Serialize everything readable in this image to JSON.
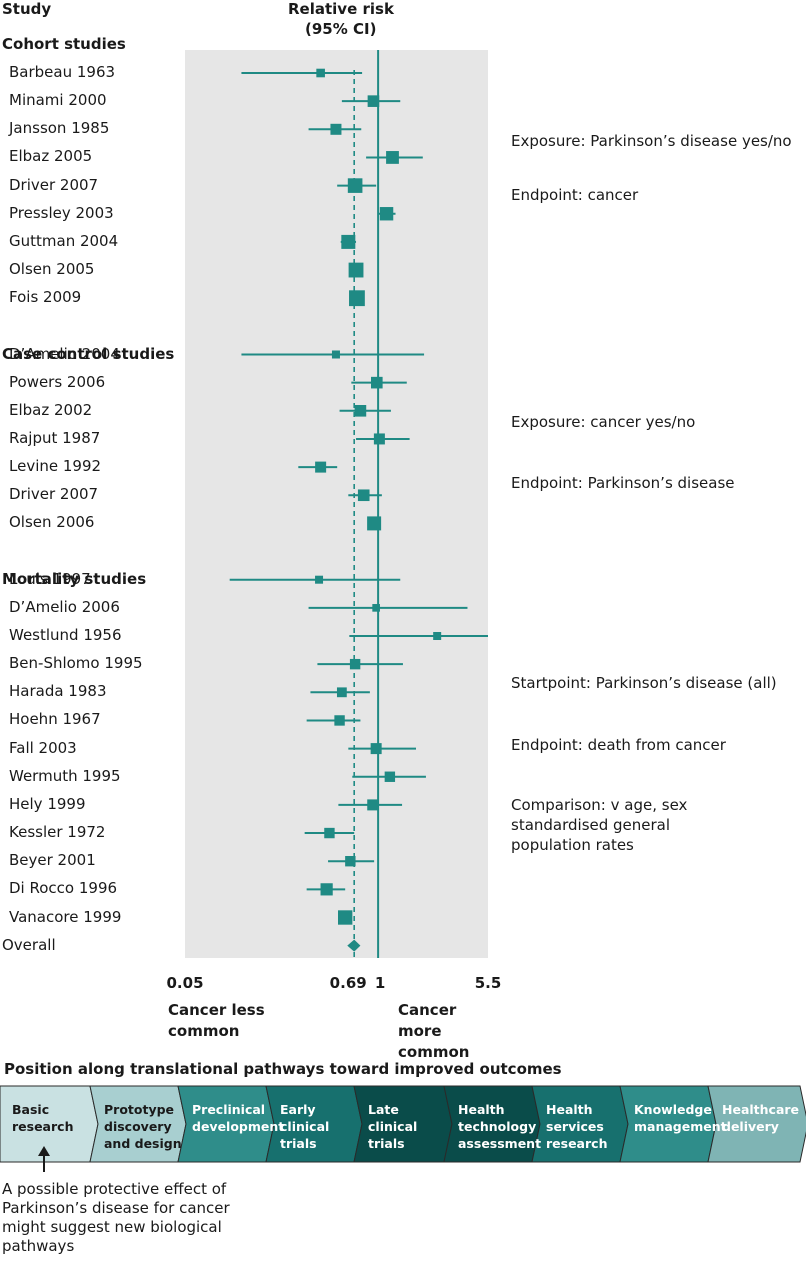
{
  "header": {
    "study_label": "Study",
    "effect_label_1": "Relative risk",
    "effect_label_2": "(95% CI)"
  },
  "chart_data": {
    "type": "forest",
    "xscale": "log",
    "xlim": [
      0.05,
      5.5
    ],
    "xticks": [
      "0.05",
      "0.69",
      "1",
      "5.5"
    ],
    "reference_line": 1,
    "pooled_line": 0.69,
    "xlabel_left": "Cancer less common",
    "xlabel_right": "Cancer more common",
    "marker_color": "#1f8a84",
    "background_color": "#e6e6e6",
    "groups": [
      {
        "name": "Cohort studies",
        "note": [
          "Exposure: Parkinson’s disease yes/no",
          "Endpoint: cancer"
        ],
        "studies": [
          {
            "label": "Barbeau 1963",
            "rr": 0.41,
            "lo": 0.12,
            "hi": 0.78,
            "w": 0.3
          },
          {
            "label": "Minami 2000",
            "rr": 0.93,
            "lo": 0.57,
            "hi": 1.41,
            "w": 0.55
          },
          {
            "label": "Jansson 1985",
            "rr": 0.52,
            "lo": 0.34,
            "hi": 0.77,
            "w": 0.5
          },
          {
            "label": "Elbaz 2005",
            "rr": 1.25,
            "lo": 0.83,
            "hi": 2.0,
            "w": 0.65
          },
          {
            "label": "Driver 2007",
            "rr": 0.7,
            "lo": 0.53,
            "hi": 0.97,
            "w": 0.8
          },
          {
            "label": "Pressley 2003",
            "rr": 1.14,
            "lo": 1.0,
            "hi": 1.31,
            "w": 0.7
          },
          {
            "label": "Guttman 2004",
            "rr": 0.63,
            "lo": 0.56,
            "hi": 0.71,
            "w": 0.75
          },
          {
            "label": "Olsen 2005",
            "rr": 0.71,
            "lo": 0.66,
            "hi": 0.77,
            "w": 0.82
          },
          {
            "label": "Fois 2009",
            "rr": 0.72,
            "lo": 0.67,
            "hi": 0.78,
            "w": 0.9
          }
        ]
      },
      {
        "name": "Case control studies",
        "note": [
          "Exposure: cancer yes/no",
          "Endpoint: Parkinson’s disease"
        ],
        "studies": [
          {
            "label": "D’Amelio 2004",
            "rr": 0.52,
            "lo": 0.12,
            "hi": 2.04,
            "w": 0.25
          },
          {
            "label": "Powers 2006",
            "rr": 0.98,
            "lo": 0.66,
            "hi": 1.56,
            "w": 0.55
          },
          {
            "label": "Elbaz 2002",
            "rr": 0.76,
            "lo": 0.55,
            "hi": 1.22,
            "w": 0.55
          },
          {
            "label": "Rajput 1987",
            "rr": 1.02,
            "lo": 0.71,
            "hi": 1.63,
            "w": 0.5
          },
          {
            "label": "Levine 1992",
            "rr": 0.41,
            "lo": 0.29,
            "hi": 0.53,
            "w": 0.5
          },
          {
            "label": "Driver 2007",
            "rr": 0.8,
            "lo": 0.63,
            "hi": 1.06,
            "w": 0.55
          },
          {
            "label": "Olsen 2006",
            "rr": 0.94,
            "lo": 0.87,
            "hi": 1.01,
            "w": 0.75
          }
        ]
      },
      {
        "name": "Mortality studies",
        "note": [
          "Startpoint: Parkinson’s disease (all)",
          "Endpoint: death from cancer",
          "Comparison: v age, sex",
          "standardised general",
          "population rates"
        ],
        "studies": [
          {
            "label": "Louis 1997",
            "rr": 0.4,
            "lo": 0.1,
            "hi": 1.41,
            "w": 0.25
          },
          {
            "label": "D’Amelio 2006",
            "rr": 0.97,
            "lo": 0.34,
            "hi": 4.0,
            "w": 0.22
          },
          {
            "label": "Westlund 1956",
            "rr": 2.5,
            "lo": 0.64,
            "hi": 5.5,
            "w": 0.25
          },
          {
            "label": "Ben-Shlomo 1995",
            "rr": 0.7,
            "lo": 0.39,
            "hi": 1.47,
            "w": 0.45
          },
          {
            "label": "Harada 1983",
            "rr": 0.57,
            "lo": 0.35,
            "hi": 0.88,
            "w": 0.4
          },
          {
            "label": "Hoehn 1967",
            "rr": 0.55,
            "lo": 0.33,
            "hi": 0.76,
            "w": 0.45
          },
          {
            "label": "Fall 2003",
            "rr": 0.97,
            "lo": 0.63,
            "hi": 1.8,
            "w": 0.5
          },
          {
            "label": "Wermuth 1995",
            "rr": 1.2,
            "lo": 0.67,
            "hi": 2.1,
            "w": 0.45
          },
          {
            "label": "Hely 1999",
            "rr": 0.92,
            "lo": 0.54,
            "hi": 1.45,
            "w": 0.5
          },
          {
            "label": "Kessler 1972",
            "rr": 0.47,
            "lo": 0.32,
            "hi": 0.69,
            "w": 0.45
          },
          {
            "label": "Beyer 2001",
            "rr": 0.65,
            "lo": 0.46,
            "hi": 0.94,
            "w": 0.45
          },
          {
            "label": "Di Rocco 1996",
            "rr": 0.45,
            "lo": 0.33,
            "hi": 0.6,
            "w": 0.6
          },
          {
            "label": "Vanacore 1999",
            "rr": 0.6,
            "lo": 0.55,
            "hi": 0.66,
            "w": 0.78
          }
        ]
      }
    ],
    "overall": {
      "label": "Overall",
      "rr": 0.69,
      "lo": 0.62,
      "hi": 0.76
    }
  },
  "pathway": {
    "title": "Position along translational pathways toward improved outcomes",
    "stages": [
      {
        "lines": [
          "Basic",
          "research"
        ],
        "fill": "#c9e1e2",
        "text": "#1a1a1a"
      },
      {
        "lines": [
          "Prototype",
          "discovery",
          "and design"
        ],
        "fill": "#a8cfd0",
        "text": "#1a1a1a"
      },
      {
        "lines": [
          "Preclinical",
          "development"
        ],
        "fill": "#2f8d8a",
        "text": "#ffffff"
      },
      {
        "lines": [
          "Early",
          "clinical",
          "trials"
        ],
        "fill": "#17706e",
        "text": "#ffffff"
      },
      {
        "lines": [
          "Late",
          "clinical",
          "trials"
        ],
        "fill": "#0a4c4a",
        "text": "#ffffff"
      },
      {
        "lines": [
          "Health",
          "technology",
          "assessment"
        ],
        "fill": "#0a4c4a",
        "text": "#ffffff"
      },
      {
        "lines": [
          "Health",
          "services",
          "research"
        ],
        "fill": "#17706e",
        "text": "#ffffff"
      },
      {
        "lines": [
          "Knowledge",
          "management"
        ],
        "fill": "#2f8d8a",
        "text": "#ffffff"
      },
      {
        "lines": [
          "Healthcare",
          "delivery"
        ],
        "fill": "#7fb4b4",
        "text": "#ffffff"
      }
    ],
    "footnote": "A possible protective effect of Parkinson’s disease for cancer might suggest new biological pathways"
  }
}
